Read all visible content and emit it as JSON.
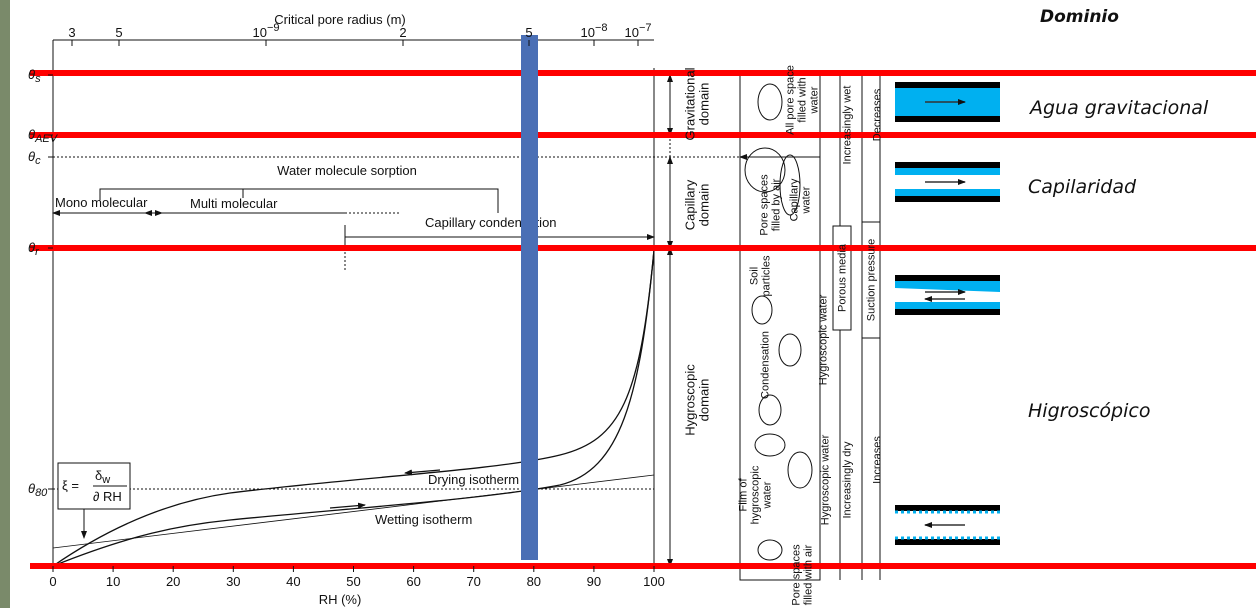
{
  "header": {
    "title": "Dominio"
  },
  "top_axis": {
    "title": "Critical pore radius (m)",
    "ticks": [
      {
        "base": "3"
      },
      {
        "base": "5"
      },
      {
        "base": "10",
        "exp": "−9"
      },
      {
        "base": "2"
      },
      {
        "base": "5"
      },
      {
        "base": "10",
        "exp": "−8"
      },
      {
        "base": "10",
        "exp": "−7"
      }
    ]
  },
  "y_labels": [
    {
      "base": "θ",
      "sub": "s"
    },
    {
      "base": "θ",
      "sub": "AEV"
    },
    {
      "base": "θ",
      "sub": "c"
    },
    {
      "base": "θ",
      "sub": "r"
    },
    {
      "base": "θ",
      "sub": "80"
    }
  ],
  "bottom_axis": {
    "title": "RH (%)",
    "ticks": [
      0,
      10,
      20,
      30,
      40,
      50,
      60,
      70,
      80,
      90,
      100
    ]
  },
  "annotations": {
    "sorption": "Water molecule sorption",
    "mono": "Mono molecular",
    "multi": "Multi molecular",
    "capillary_condensation": "Capillary condensation",
    "drying": "Drying isotherm",
    "wetting": "Wetting isotherm"
  },
  "formula": {
    "lhs": "ξ =",
    "num": "δ",
    "num_sub": "w",
    "den": "∂ RH"
  },
  "domains": [
    [
      "Gravitational",
      "domain"
    ],
    [
      "Capillary",
      "domain"
    ],
    [
      "Hygroscopic",
      "domain"
    ]
  ],
  "soil_labels": [
    [
      "All pore space",
      "filled with",
      "water"
    ],
    [
      "Pore spaces",
      "filled by air"
    ],
    [
      "Capillary",
      "water"
    ],
    [
      "Soil",
      "particles"
    ],
    [
      "Condensation"
    ],
    [
      "Film of",
      "hygroscopic",
      "water"
    ],
    [
      "Pore spaces",
      "filled with air"
    ],
    [
      "Hygroscopic water"
    ],
    [
      "Hygroscopic water"
    ],
    [
      "Increasingly wet"
    ],
    [
      "Porous media"
    ],
    [
      "Increasingly dry"
    ],
    [
      "Decreases"
    ],
    [
      "Suction pressure"
    ],
    [
      "Increases"
    ]
  ],
  "spanish": [
    "Agua gravitacional",
    "Capilaridad",
    "Higroscópico"
  ]
}
